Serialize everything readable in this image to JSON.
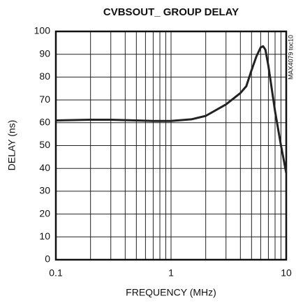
{
  "chart_data": {
    "type": "line",
    "title": "CVBSOUT_ GROUP DELAY",
    "xlabel": "FREQUENCY (MHz)",
    "ylabel": "DELAY (ns)",
    "annotation": "MAX4079 toc10",
    "xscale": "log",
    "x": [
      0.1,
      0.2,
      0.3,
      0.5,
      0.7,
      1,
      1.5,
      2,
      3,
      4,
      4.5,
      5,
      5.5,
      6,
      6.3,
      6.6,
      7,
      8,
      9,
      10
    ],
    "values": [
      61,
      61.3,
      61.3,
      61,
      60.8,
      60.8,
      61.5,
      63,
      68,
      73,
      76,
      83,
      89,
      93,
      93.5,
      92,
      85,
      65,
      50,
      38
    ],
    "color": "#222222",
    "xlim": [
      0.1,
      10
    ],
    "ylim": [
      0,
      100
    ],
    "xticks": [
      0.1,
      1,
      10
    ],
    "xminor": [
      0.2,
      0.3,
      0.4,
      0.5,
      0.6,
      0.7,
      0.8,
      0.9,
      2,
      3,
      4,
      5,
      6,
      7,
      8,
      9
    ],
    "yticks": [
      0,
      10,
      20,
      30,
      40,
      50,
      60,
      70,
      80,
      90,
      100
    ],
    "grid": true
  }
}
